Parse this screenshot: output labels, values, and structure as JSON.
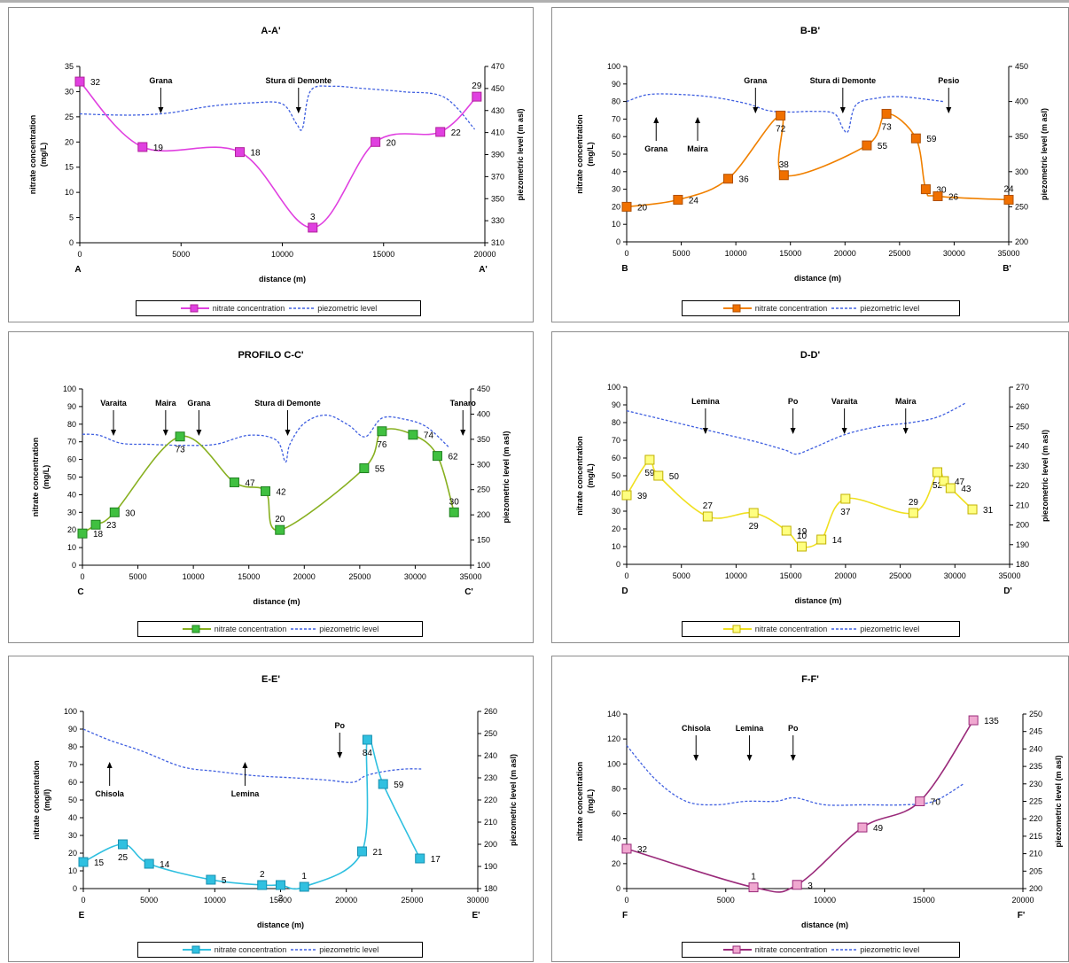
{
  "layout_note": "",
  "legend": {
    "nitrate": "nitrate concentration",
    "piezo": "piezometric level"
  },
  "chart_data": [
    {
      "type": "line",
      "title": "A-A'",
      "xlabel": "distance (m)",
      "ylabel": "nitrate concentration (mg/L)",
      "y2label": "piezometric level (m asl)",
      "xlim": [
        0,
        20000
      ],
      "xticks": [
        0,
        5000,
        10000,
        15000,
        20000
      ],
      "ylim": [
        0,
        35
      ],
      "yticks": [
        0,
        5,
        10,
        15,
        20,
        25,
        30,
        35
      ],
      "y2lim": [
        310,
        470
      ],
      "y2ticks": [
        310,
        330,
        350,
        370,
        390,
        410,
        430,
        450,
        470
      ],
      "start_label": "A",
      "end_label": "A'",
      "color": "#e040e0",
      "marker_fill": "#e040e0",
      "marker_stroke": "#b0209a",
      "series": [
        {
          "name": "nitrate concentration",
          "x": [
            0,
            3100,
            7900,
            11500,
            14600,
            17800,
            19600
          ],
          "y": [
            32,
            19,
            18,
            3,
            20,
            22,
            29
          ],
          "labels": [
            "32",
            "19",
            "18",
            "3",
            "20",
            "22",
            "29"
          ]
        },
        {
          "name": "piezometric level",
          "axis": "secondary",
          "x": [
            0,
            1500,
            3000,
            4500,
            6500,
            8500,
            10000,
            10700,
            11000,
            11400,
            12500,
            14000,
            16000,
            18000,
            19500
          ],
          "y": [
            427,
            426,
            426,
            428,
            434,
            437,
            436,
            418,
            414,
            448,
            452,
            450,
            447,
            442,
            413
          ]
        }
      ],
      "annotations": [
        {
          "text": "Grana",
          "x": 4000
        },
        {
          "text": "Stura di Demonte",
          "x": 10800
        }
      ]
    },
    {
      "type": "line",
      "title": "B-B'",
      "xlabel": "distance (m)",
      "ylabel": "nitrate concentration (mg/L)",
      "y2label": "piezometric level (m asl)",
      "xlim": [
        0,
        35000
      ],
      "xticks": [
        0,
        5000,
        10000,
        15000,
        20000,
        25000,
        30000,
        35000
      ],
      "ylim": [
        0,
        100
      ],
      "yticks": [
        0,
        10,
        20,
        30,
        40,
        50,
        60,
        70,
        80,
        90,
        100
      ],
      "y2lim": [
        200,
        450
      ],
      "y2ticks": [
        200,
        250,
        300,
        350,
        400,
        450
      ],
      "start_label": "B",
      "end_label": "B'",
      "color": "#f08000",
      "marker_fill": "#f07000",
      "marker_stroke": "#b05000",
      "series": [
        {
          "name": "nitrate concentration",
          "x": [
            0,
            4700,
            9300,
            14100,
            14400,
            22000,
            23800,
            26500,
            27400,
            28500,
            35000
          ],
          "y": [
            20,
            24,
            36,
            72,
            38,
            55,
            73,
            59,
            30,
            26,
            24
          ],
          "labels": [
            "20",
            "24",
            "36",
            "72",
            "38",
            "55",
            "73",
            "59",
            "30",
            "26",
            "24"
          ]
        },
        {
          "name": "piezometric level",
          "axis": "secondary",
          "x": [
            0,
            2000,
            5000,
            8000,
            11000,
            13000,
            15000,
            17000,
            19000,
            19800,
            20300,
            21000,
            23000,
            25000,
            27000,
            29000
          ],
          "y": [
            400,
            410,
            410,
            406,
            397,
            387,
            385,
            386,
            383,
            362,
            358,
            395,
            405,
            407,
            404,
            400
          ]
        }
      ],
      "annotations": [
        {
          "text": "Grana",
          "x": 11800,
          "dir": "down"
        },
        {
          "text": "Stura di Demonte",
          "x": 19800,
          "dir": "down"
        },
        {
          "text": "Pesio",
          "x": 29500,
          "dir": "down"
        },
        {
          "text": "Grana",
          "x": 2700,
          "dir": "up"
        },
        {
          "text": "Maira",
          "x": 6500,
          "dir": "up"
        }
      ]
    },
    {
      "type": "line",
      "title": "PROFILO C-C'",
      "xlabel": "distance (m)",
      "ylabel": "nitrate concentration (mg/L)",
      "y2label": "piezometric level (m asl)",
      "xlim": [
        0,
        35000
      ],
      "xticks": [
        0,
        5000,
        10000,
        15000,
        20000,
        25000,
        30000,
        35000
      ],
      "ylim": [
        0,
        100
      ],
      "yticks": [
        0,
        10,
        20,
        30,
        40,
        50,
        60,
        70,
        80,
        90,
        100
      ],
      "y2lim": [
        100,
        450
      ],
      "y2ticks": [
        100,
        150,
        200,
        250,
        300,
        350,
        400,
        450
      ],
      "start_label": "C",
      "end_label": "C'",
      "color": "#88b020",
      "marker_fill": "#40c040",
      "marker_stroke": "#208020",
      "series": [
        {
          "name": "nitrate concentration",
          "x": [
            0,
            1200,
            2900,
            8800,
            13700,
            16500,
            17800,
            25400,
            27000,
            29800,
            32000,
            33500
          ],
          "y": [
            18,
            23,
            30,
            73,
            47,
            42,
            20,
            55,
            76,
            74,
            62,
            30
          ],
          "labels": [
            "18",
            "23",
            "30",
            "73",
            "47",
            "42",
            "20",
            "55",
            "76",
            "74",
            "62",
            "30"
          ]
        },
        {
          "name": "piezometric level",
          "axis": "secondary",
          "x": [
            0,
            1500,
            3500,
            6000,
            9000,
            12000,
            15000,
            17500,
            18300,
            18700,
            20000,
            22000,
            24000,
            25500,
            27000,
            29000,
            31000,
            33000
          ],
          "y": [
            360,
            358,
            342,
            340,
            338,
            340,
            358,
            348,
            305,
            340,
            382,
            398,
            378,
            355,
            392,
            390,
            375,
            335
          ]
        }
      ],
      "annotations": [
        {
          "text": "Varaita",
          "x": 2800
        },
        {
          "text": "Maira",
          "x": 7500
        },
        {
          "text": "Grana",
          "x": 10500
        },
        {
          "text": "Stura di Demonte",
          "x": 18500
        },
        {
          "text": "Tanaro",
          "x": 34300
        }
      ]
    },
    {
      "type": "line",
      "title": "D-D'",
      "xlabel": "distance (m)",
      "ylabel": "nitrate concentration (mg/L)",
      "y2label": "piezometric level (m asl)",
      "xlim": [
        0,
        35000
      ],
      "xticks": [
        0,
        5000,
        10000,
        15000,
        20000,
        25000,
        30000,
        35000
      ],
      "ylim": [
        0,
        100
      ],
      "yticks": [
        0,
        10,
        20,
        30,
        40,
        50,
        60,
        70,
        80,
        90,
        100
      ],
      "y2lim": [
        180,
        270
      ],
      "y2ticks": [
        180,
        190,
        200,
        210,
        220,
        230,
        240,
        250,
        260,
        270
      ],
      "start_label": "D",
      "end_label": "D'",
      "color": "#f0e020",
      "marker_fill": "#ffff80",
      "marker_stroke": "#c0b000",
      "series": [
        {
          "name": "nitrate concentration",
          "x": [
            0,
            2100,
            2900,
            7400,
            11600,
            14600,
            16000,
            17800,
            20000,
            26200,
            28400,
            29000,
            29600,
            31600
          ],
          "y": [
            39,
            59,
            50,
            27,
            29,
            19,
            10,
            14,
            37,
            29,
            52,
            47,
            43,
            31
          ],
          "labels": [
            "39",
            "59",
            "50",
            "27",
            "29",
            "19",
            "10",
            "14",
            "37",
            "29",
            "52",
            "47",
            "43",
            "31"
          ]
        },
        {
          "name": "piezometric level",
          "axis": "secondary",
          "x": [
            0,
            3000,
            6000,
            9000,
            12000,
            14500,
            15500,
            17000,
            20000,
            23000,
            26000,
            28500,
            31000
          ],
          "y": [
            258,
            254,
            250,
            246,
            242,
            238,
            236,
            239,
            246,
            250,
            252,
            255,
            262
          ]
        }
      ],
      "annotations": [
        {
          "text": "Lemina",
          "x": 7200
        },
        {
          "text": "Po",
          "x": 15200
        },
        {
          "text": "Varaita",
          "x": 19900
        },
        {
          "text": "Maira",
          "x": 25500
        }
      ]
    },
    {
      "type": "line",
      "title": "E-E'",
      "xlabel": "distance (m)",
      "ylabel": "nitrate concentration (mg/l)",
      "y2label": "piezometric level (m asl)",
      "xlim": [
        0,
        30000
      ],
      "xticks": [
        0,
        5000,
        10000,
        15000,
        20000,
        25000,
        30000
      ],
      "ylim": [
        0,
        100
      ],
      "yticks": [
        0,
        10,
        20,
        30,
        40,
        50,
        60,
        70,
        80,
        90,
        100
      ],
      "y2lim": [
        180,
        260
      ],
      "y2ticks": [
        180,
        190,
        200,
        210,
        220,
        230,
        240,
        250,
        260
      ],
      "start_label": "E",
      "end_label": "E'",
      "color": "#30c0e0",
      "marker_fill": "#30c0e0",
      "marker_stroke": "#1890b0",
      "series": [
        {
          "name": "nitrate concentration",
          "x": [
            0,
            3000,
            5000,
            9700,
            13600,
            15000,
            16800,
            21200,
            21600,
            22800,
            25600
          ],
          "y": [
            15,
            25,
            14,
            5,
            2,
            2,
            1,
            21,
            84,
            59,
            17
          ],
          "labels": [
            "15",
            "25",
            "14",
            "5",
            "2",
            "2",
            "1",
            "21",
            "84",
            "59",
            "17"
          ]
        },
        {
          "name": "piezometric level",
          "axis": "secondary",
          "x": [
            0,
            2000,
            4500,
            7500,
            10000,
            13000,
            16000,
            18500,
            20500,
            21500,
            23000,
            24500,
            25700
          ],
          "y": [
            252,
            247,
            242,
            235,
            233,
            231,
            230,
            229,
            228,
            231,
            233,
            234,
            234
          ]
        }
      ],
      "annotations": [
        {
          "text": "Chisola",
          "x": 2000,
          "dir": "up"
        },
        {
          "text": "Lemina",
          "x": 12300,
          "dir": "up"
        },
        {
          "text": "Po",
          "x": 19500,
          "dir": "down"
        }
      ]
    },
    {
      "type": "line",
      "title": "F-F'",
      "xlabel": "distance (m)",
      "ylabel": "nitrate concentration (mg/L)",
      "y2label": "piezometric level (m asl)",
      "xlim": [
        0,
        20000
      ],
      "xticks": [
        0,
        5000,
        10000,
        15000,
        20000
      ],
      "ylim": [
        0,
        140
      ],
      "yticks": [
        0,
        20,
        40,
        60,
        80,
        100,
        120,
        140
      ],
      "y2lim": [
        200,
        250
      ],
      "y2ticks": [
        200,
        205,
        210,
        215,
        220,
        225,
        230,
        235,
        240,
        245,
        250
      ],
      "start_label": "F",
      "end_label": "F'",
      "color": "#9a2a7a",
      "marker_fill": "#f0a8d0",
      "marker_stroke": "#9a2a7a",
      "series": [
        {
          "name": "nitrate concentration",
          "x": [
            0,
            6400,
            8600,
            11900,
            14800,
            17500
          ],
          "y": [
            32,
            1,
            3,
            49,
            70,
            135
          ],
          "labels": [
            "32",
            "1",
            "3",
            "49",
            "70",
            "135"
          ]
        },
        {
          "name": "piezometric level",
          "axis": "secondary",
          "x": [
            0,
            1500,
            3000,
            4500,
            6000,
            7500,
            8500,
            10000,
            12000,
            14000,
            15500,
            17000
          ],
          "y": [
            241,
            231,
            225,
            224,
            225,
            225,
            226,
            224,
            224,
            224,
            225,
            230
          ]
        }
      ],
      "annotations": [
        {
          "text": "Chisola",
          "x": 3500
        },
        {
          "text": "Lemina",
          "x": 6200
        },
        {
          "text": "Po",
          "x": 8400
        }
      ]
    }
  ]
}
